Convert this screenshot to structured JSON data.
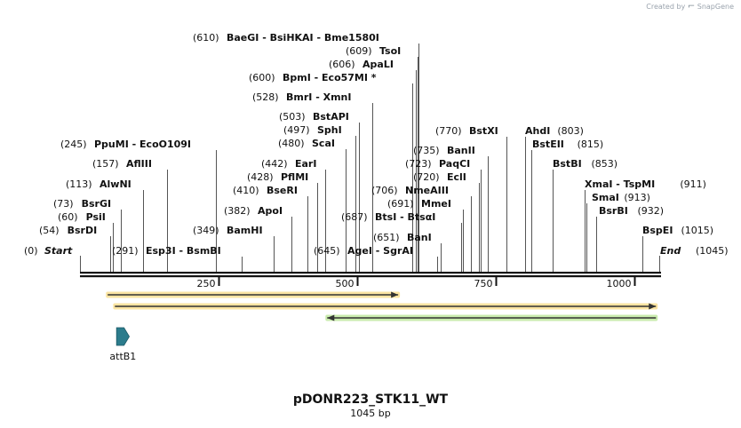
{
  "watermark": {
    "prefix": "Created by",
    "brand": "SnapGene"
  },
  "title": "pDONR223_STK11_WT",
  "length_label": "1045 bp",
  "map": {
    "total_bp": 1045,
    "ticks": [
      {
        "pos": 250,
        "label": "250"
      },
      {
        "pos": 500,
        "label": "500"
      },
      {
        "pos": 750,
        "label": "750"
      },
      {
        "pos": 1000,
        "label": "1000"
      }
    ],
    "ends": [
      {
        "pos": 0,
        "num": "(0)",
        "name": "Start"
      },
      {
        "pos": 1045,
        "num": "(1045)",
        "name": "End"
      }
    ],
    "sites": [
      {
        "pos": 610,
        "num": "(610)",
        "name": "BaeGI  -  BsiHKAI  -  Bme1580I"
      },
      {
        "pos": 609,
        "num": "(609)",
        "name": "TsoI"
      },
      {
        "pos": 606,
        "num": "(606)",
        "name": "ApaLI"
      },
      {
        "pos": 600,
        "num": "(600)",
        "name": "BpmI  -  Eco57MI *"
      },
      {
        "pos": 528,
        "num": "(528)",
        "name": "BmrI  -  XmnI"
      },
      {
        "pos": 503,
        "num": "(503)",
        "name": "BstAPI"
      },
      {
        "pos": 497,
        "num": "(497)",
        "name": "SphI"
      },
      {
        "pos": 480,
        "num": "(480)",
        "name": "ScaI"
      },
      {
        "pos": 442,
        "num": "(442)",
        "name": "EarI"
      },
      {
        "pos": 428,
        "num": "(428)",
        "name": "PflMI"
      },
      {
        "pos": 410,
        "num": "(410)",
        "name": "BseRI"
      },
      {
        "pos": 382,
        "num": "(382)",
        "name": "ApoI"
      },
      {
        "pos": 349,
        "num": "(349)",
        "name": "BamHI"
      },
      {
        "pos": 245,
        "num": "(245)",
        "name": "PpuMI  -  EcoO109I"
      },
      {
        "pos": 157,
        "num": "(157)",
        "name": "AflIII"
      },
      {
        "pos": 113,
        "num": "(113)",
        "name": "AlwNI"
      },
      {
        "pos": 73,
        "num": "(73)",
        "name": "BsrGI"
      },
      {
        "pos": 60,
        "num": "(60)",
        "name": "PsiI"
      },
      {
        "pos": 54,
        "num": "(54)",
        "name": "BsrDI"
      },
      {
        "pos": 291,
        "num": "(291)",
        "name": "Esp3I  -  BsmBI"
      },
      {
        "pos": 645,
        "num": "(645)",
        "name": "AgeI  -  SgrAI"
      },
      {
        "pos": 651,
        "num": "(651)",
        "name": "BanI"
      },
      {
        "pos": 687,
        "num": "(687)",
        "name": "BtsI  -  BtsαI"
      },
      {
        "pos": 691,
        "num": "(691)",
        "name": "MmeI"
      },
      {
        "pos": 706,
        "num": "(706)",
        "name": "NmeAIII"
      },
      {
        "pos": 720,
        "num": "(720)",
        "name": "EclI"
      },
      {
        "pos": 723,
        "num": "(723)",
        "name": "PaqCI"
      },
      {
        "pos": 735,
        "num": "(735)",
        "name": "BanII"
      },
      {
        "pos": 770,
        "num": "(770)",
        "name": "BstXI"
      },
      {
        "pos": 803,
        "num": "(803)",
        "name": "AhdI"
      },
      {
        "pos": 815,
        "num": "(815)",
        "name": "BstEII"
      },
      {
        "pos": 853,
        "num": "(853)",
        "name": "BstBI"
      },
      {
        "pos": 911,
        "num": "(911)",
        "name": "XmaI  -  TspMI"
      },
      {
        "pos": 913,
        "num": "(913)",
        "name": "SmaI"
      },
      {
        "pos": 932,
        "num": "(932)",
        "name": "BsrBI"
      },
      {
        "pos": 1015,
        "num": "(1015)",
        "name": "BspEI"
      }
    ],
    "features": [
      {
        "kind": "orf",
        "start": 50,
        "end": 574,
        "direction": "forward",
        "color": "#f0a30a",
        "highlight": "#fbe4a2"
      },
      {
        "kind": "orf",
        "start": 63,
        "end": 1039,
        "direction": "forward",
        "color": "#f0a30a",
        "highlight": "#fbe4a2"
      },
      {
        "kind": "orf",
        "start": 1039,
        "end": 446,
        "direction": "reverse",
        "color": "#7cc24a",
        "highlight": "#c9ebad"
      }
    ],
    "attb": {
      "name": "attB1",
      "start": 66,
      "end": 89,
      "color": "#2c7c8c"
    }
  }
}
